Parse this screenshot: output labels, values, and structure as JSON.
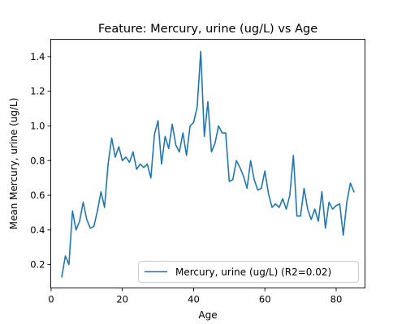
{
  "chart_data": {
    "type": "line",
    "title": "Feature: Mercury, urine (ug/L) vs Age",
    "xlabel": "Age",
    "ylabel": "Mean Mercury, urine (ug/L)",
    "xlim": [
      -0.1,
      88.1
    ],
    "ylim": [
      0.065,
      1.5
    ],
    "xticks": [
      0,
      20,
      40,
      60,
      80
    ],
    "yticks": [
      0.2,
      0.4,
      0.6,
      0.8,
      1.0,
      1.2,
      1.4
    ],
    "xtick_labels": [
      "0",
      "20",
      "40",
      "60",
      "80"
    ],
    "ytick_labels": [
      "0.2",
      "0.4",
      "0.6",
      "0.8",
      "1.0",
      "1.2",
      "1.4"
    ],
    "grid": false,
    "legend_position": "lower-right",
    "series": [
      {
        "name": "Mercury, urine (ug/L) (R2=0.02)",
        "color": "#1f77b4",
        "x": [
          3,
          4,
          5,
          6,
          7,
          8,
          9,
          10,
          11,
          12,
          13,
          14,
          15,
          16,
          17,
          18,
          19,
          20,
          21,
          22,
          23,
          24,
          25,
          26,
          27,
          28,
          29,
          30,
          31,
          32,
          33,
          34,
          35,
          36,
          37,
          38,
          39,
          40,
          41,
          42,
          43,
          44,
          45,
          46,
          47,
          48,
          49,
          50,
          51,
          52,
          53,
          54,
          55,
          56,
          57,
          58,
          59,
          60,
          61,
          62,
          63,
          64,
          65,
          66,
          67,
          68,
          69,
          70,
          71,
          72,
          73,
          74,
          75,
          76,
          77,
          78,
          79,
          80,
          81,
          82,
          83,
          84,
          85
        ],
        "y": [
          0.13,
          0.25,
          0.2,
          0.51,
          0.4,
          0.45,
          0.56,
          0.46,
          0.41,
          0.42,
          0.51,
          0.62,
          0.53,
          0.78,
          0.93,
          0.82,
          0.88,
          0.8,
          0.82,
          0.79,
          0.85,
          0.75,
          0.78,
          0.76,
          0.78,
          0.7,
          0.95,
          1.03,
          0.78,
          0.94,
          0.87,
          1.01,
          0.89,
          0.85,
          0.96,
          0.83,
          1.0,
          1.02,
          1.11,
          1.43,
          0.94,
          1.14,
          0.85,
          0.9,
          1.0,
          0.96,
          0.96,
          0.68,
          0.69,
          0.8,
          0.76,
          0.71,
          0.64,
          0.8,
          0.69,
          0.63,
          0.64,
          0.74,
          0.61,
          0.53,
          0.55,
          0.53,
          0.58,
          0.52,
          0.6,
          0.83,
          0.48,
          0.48,
          0.64,
          0.52,
          0.46,
          0.52,
          0.45,
          0.62,
          0.41,
          0.56,
          0.52,
          0.54,
          0.55,
          0.37,
          0.56,
          0.67,
          0.62
        ]
      }
    ]
  }
}
